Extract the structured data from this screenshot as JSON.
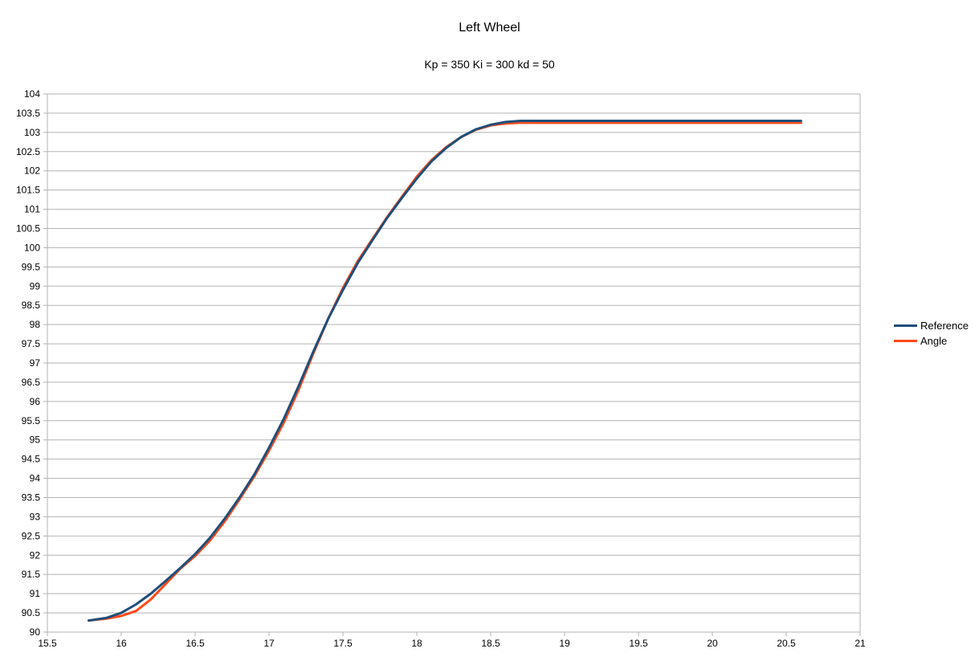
{
  "chart_data": {
    "type": "line",
    "title": "Left Wheel",
    "subtitle": "Kp = 350 Ki = 300 kd = 50",
    "xlabel": "",
    "ylabel": "",
    "xlim": [
      15.5,
      21
    ],
    "ylim": [
      90,
      104
    ],
    "x_ticks": [
      "15.5",
      "16",
      "16.5",
      "17",
      "17.5",
      "18",
      "18.5",
      "19",
      "19.5",
      "20",
      "20.5",
      "21"
    ],
    "y_ticks": [
      "90",
      "90.5",
      "91",
      "91.5",
      "92",
      "92.5",
      "93",
      "93.5",
      "94",
      "94.5",
      "95",
      "95.5",
      "96",
      "96.5",
      "97",
      "97.5",
      "98",
      "98.5",
      "99",
      "99.5",
      "100",
      "100.5",
      "101",
      "101.5",
      "102",
      "102.5",
      "103",
      "103.5",
      "104"
    ],
    "grid": "horizontal",
    "legend_position": "right",
    "series": [
      {
        "name": "Reference",
        "color": "#1f4e79",
        "x": [
          15.78,
          15.9,
          16.0,
          16.1,
          16.2,
          16.3,
          16.4,
          16.5,
          16.6,
          16.7,
          16.8,
          16.9,
          17.0,
          17.1,
          17.2,
          17.3,
          17.4,
          17.5,
          17.6,
          17.7,
          17.8,
          17.9,
          18.0,
          18.1,
          18.2,
          18.3,
          18.4,
          18.5,
          18.6,
          18.7,
          18.8,
          19.0,
          19.5,
          20.0,
          20.6
        ],
        "values": [
          90.3,
          90.37,
          90.5,
          90.72,
          91.0,
          91.33,
          91.67,
          92.03,
          92.45,
          92.95,
          93.5,
          94.1,
          94.8,
          95.55,
          96.4,
          97.3,
          98.15,
          98.9,
          99.6,
          100.2,
          100.78,
          101.3,
          101.8,
          102.25,
          102.6,
          102.88,
          103.08,
          103.2,
          103.27,
          103.3,
          103.3,
          103.3,
          103.3,
          103.3,
          103.3
        ]
      },
      {
        "name": "Angle",
        "color": "#ff4a1c",
        "x": [
          15.78,
          15.9,
          16.0,
          16.1,
          16.2,
          16.3,
          16.4,
          16.5,
          16.6,
          16.7,
          16.8,
          16.9,
          17.0,
          17.1,
          17.2,
          17.3,
          17.4,
          17.5,
          17.6,
          17.7,
          17.8,
          17.9,
          18.0,
          18.1,
          18.2,
          18.3,
          18.4,
          18.5,
          18.6,
          18.7,
          18.8,
          19.0,
          19.5,
          20.0,
          20.6
        ],
        "values": [
          90.3,
          90.35,
          90.42,
          90.55,
          90.85,
          91.25,
          91.65,
          91.98,
          92.38,
          92.88,
          93.45,
          94.05,
          94.72,
          95.45,
          96.3,
          97.25,
          98.15,
          98.95,
          99.65,
          100.23,
          100.8,
          101.33,
          101.85,
          102.28,
          102.62,
          102.88,
          103.07,
          103.18,
          103.23,
          103.25,
          103.25,
          103.25,
          103.25,
          103.25,
          103.25
        ]
      }
    ]
  }
}
